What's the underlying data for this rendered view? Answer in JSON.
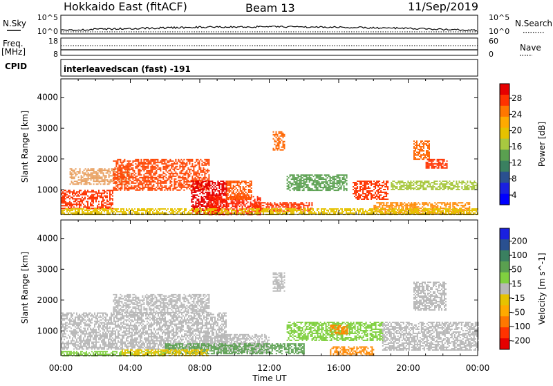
{
  "header": {
    "station": "Hokkaido East (fitACF)",
    "beam": "Beam 13",
    "date": "11/Sep/2019"
  },
  "side_labels": {
    "nsky": "N.Sky",
    "freq": "Freq.",
    "mhz": "[MHz]",
    "cpid": "CPID",
    "nsearch": "N.Search",
    "nave": "Nave"
  },
  "top_ticks": {
    "nsky_hi": "10^5",
    "nsky_lo": "10^0",
    "freq_hi": "18",
    "freq_lo": "8",
    "nsearch_hi": "10^5",
    "nsearch_lo": "10^0",
    "nave_hi": "60",
    "nave_lo": "0"
  },
  "cpid_label": "interleavedscan (fast) -191",
  "xaxis": {
    "label": "Time UT",
    "ticks": [
      "00:00",
      "04:00",
      "08:00",
      "12:00",
      "16:00",
      "20:00",
      "00:00"
    ]
  },
  "chart_data": [
    {
      "type": "heatmap",
      "name": "Power",
      "xlabel": "Time UT",
      "ylabel": "Slant Range [km]",
      "xlim": [
        0,
        24
      ],
      "ylim": [
        200,
        4600
      ],
      "yticks": [
        1000,
        2000,
        3000,
        4000
      ],
      "colorbar": {
        "label": "Power [dB]",
        "ticks": [
          "28",
          "24",
          "20",
          "16",
          "12",
          "8",
          "4"
        ],
        "colors": [
          "#e60000",
          "#ff3300",
          "#ff7700",
          "#ffaa00",
          "#e6c200",
          "#a8c840",
          "#5aa050",
          "#3a8060",
          "#2a5090",
          "#1a20e0",
          "#0000ff"
        ]
      },
      "regions": [
        {
          "t0": 0.0,
          "t1": 3.0,
          "r0": 400,
          "r1": 1000,
          "color": "#ff3300"
        },
        {
          "t0": 0.5,
          "t1": 4.0,
          "r0": 1200,
          "r1": 1700,
          "color": "#e8a060"
        },
        {
          "t0": 3.0,
          "t1": 8.5,
          "r0": 1000,
          "r1": 2000,
          "color": "#ff4400"
        },
        {
          "t0": 7.5,
          "t1": 9.5,
          "r0": 200,
          "r1": 1300,
          "color": "#e60000"
        },
        {
          "t0": 8.5,
          "t1": 11.5,
          "r0": 200,
          "r1": 800,
          "color": "#ff2200"
        },
        {
          "t0": 9.5,
          "t1": 11.0,
          "r0": 700,
          "r1": 1300,
          "color": "#ff5500"
        },
        {
          "t0": 12.2,
          "t1": 12.9,
          "r0": 2300,
          "r1": 2900,
          "color": "#ff6600"
        },
        {
          "t0": 11.0,
          "t1": 14.5,
          "r0": 300,
          "r1": 600,
          "color": "#ff3300"
        },
        {
          "t0": 13.0,
          "t1": 16.5,
          "r0": 1000,
          "r1": 1500,
          "color": "#5aa050"
        },
        {
          "t0": 16.8,
          "t1": 18.8,
          "r0": 700,
          "r1": 1300,
          "color": "#ff3300"
        },
        {
          "t0": 18.0,
          "t1": 23.5,
          "r0": 200,
          "r1": 600,
          "color": "#ff8800"
        },
        {
          "t0": 20.3,
          "t1": 21.2,
          "r0": 2000,
          "r1": 2600,
          "color": "#ff6600"
        },
        {
          "t0": 21.0,
          "t1": 22.2,
          "r0": 1700,
          "r1": 2000,
          "color": "#ff3300"
        },
        {
          "t0": 19.0,
          "t1": 24.0,
          "r0": 1000,
          "r1": 1300,
          "color": "#a8c840"
        },
        {
          "t0": 0.0,
          "t1": 24.0,
          "r0": 200,
          "r1": 400,
          "color": "#e6c200"
        }
      ]
    },
    {
      "type": "heatmap",
      "name": "Velocity",
      "xlabel": "Time UT",
      "ylabel": "Slant Range [km]",
      "xlim": [
        0,
        24
      ],
      "ylim": [
        200,
        4600
      ],
      "yticks": [
        1000,
        2000,
        3000,
        4000
      ],
      "colorbar": {
        "label": "Velocity [m s^-1]",
        "ticks": [
          "200",
          "100",
          "50",
          "15",
          "-15",
          "-50",
          "-100",
          "-200"
        ],
        "colors": [
          "#1a20e0",
          "#2a5090",
          "#3a8060",
          "#5aa050",
          "#80d040",
          "#b8b8b8",
          "#e6c200",
          "#ffaa00",
          "#ff7700",
          "#ff3300",
          "#e60000"
        ]
      },
      "regions": [
        {
          "t0": 0.0,
          "t1": 9.5,
          "r0": 400,
          "r1": 1600,
          "color": "#b8b8b8"
        },
        {
          "t0": 3.0,
          "t1": 8.5,
          "r0": 1600,
          "r1": 2200,
          "color": "#b8b8b8"
        },
        {
          "t0": 9.0,
          "t1": 12.0,
          "r0": 300,
          "r1": 900,
          "color": "#b8b8b8"
        },
        {
          "t0": 12.2,
          "t1": 12.9,
          "r0": 2300,
          "r1": 2900,
          "color": "#b8b8b8"
        },
        {
          "t0": 0.0,
          "t1": 6.0,
          "r0": 200,
          "r1": 350,
          "color": "#80d040"
        },
        {
          "t0": 6.0,
          "t1": 14.0,
          "r0": 250,
          "r1": 600,
          "color": "#5aa050"
        },
        {
          "t0": 13.0,
          "t1": 18.5,
          "r0": 700,
          "r1": 1300,
          "color": "#80d040"
        },
        {
          "t0": 15.5,
          "t1": 16.5,
          "r0": 900,
          "r1": 1200,
          "color": "#ff8800"
        },
        {
          "t0": 18.5,
          "t1": 24.0,
          "r0": 400,
          "r1": 1300,
          "color": "#b8b8b8"
        },
        {
          "t0": 15.5,
          "t1": 18.0,
          "r0": 200,
          "r1": 500,
          "color": "#ff8800"
        },
        {
          "t0": 20.3,
          "t1": 22.2,
          "r0": 1700,
          "r1": 2600,
          "color": "#b8b8b8"
        },
        {
          "t0": 3.5,
          "t1": 8.5,
          "r0": 200,
          "r1": 400,
          "color": "#e6c200"
        }
      ]
    }
  ]
}
